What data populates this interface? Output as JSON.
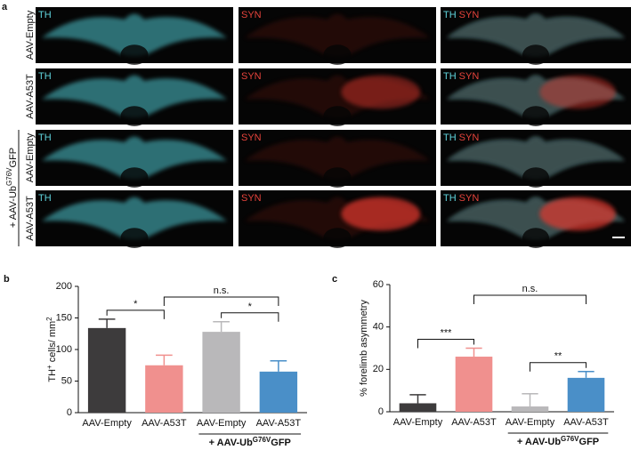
{
  "panel_labels": [
    "a",
    "b",
    "c"
  ],
  "panel_a": {
    "rows": [
      "AAV-Empty",
      "AAV-A53T",
      "AAV-Empty",
      "AAV-A53T"
    ],
    "channels": [
      [
        "TH"
      ],
      [
        "SYN"
      ],
      [
        "TH",
        "SYN"
      ]
    ],
    "group_label_parts": [
      "+ AAV-Ub",
      "G76V",
      "GFP"
    ]
  },
  "chart_data": [
    {
      "type": "bar",
      "ylabel_parts": [
        "TH",
        "+",
        " cells/ mm",
        "2"
      ],
      "categories": [
        "AAV-Empty",
        "AAV-A53T",
        "AAV-Empty",
        "AAV-A53T"
      ],
      "values": [
        134,
        75,
        128,
        65
      ],
      "errors": [
        14,
        16,
        16,
        17
      ],
      "colors": [
        "#3d3b3c",
        "#f0908e",
        "#b9b8ba",
        "#4a8fc8"
      ],
      "ylim": [
        0,
        200
      ],
      "yticks": [
        0,
        50,
        100,
        150,
        200
      ],
      "group_label_parts": [
        "+ AAV-Ub",
        "G76V",
        "GFP"
      ],
      "comparisons": [
        {
          "from": 0,
          "to": 1,
          "label": "*"
        },
        {
          "from": 1,
          "to": 3,
          "label": "n.s."
        },
        {
          "from": 2,
          "to": 3,
          "label": "*"
        }
      ]
    },
    {
      "type": "bar",
      "ylabel_parts": [
        "% forelimb asymmetry"
      ],
      "categories": [
        "AAV-Empty",
        "AAV-A53T",
        "AAV-Empty",
        "AAV-A53T"
      ],
      "values": [
        4,
        26,
        2.5,
        16
      ],
      "errors": [
        4,
        4,
        6,
        3
      ],
      "colors": [
        "#3d3b3c",
        "#f0908e",
        "#b9b8ba",
        "#4a8fc8"
      ],
      "ylim": [
        0,
        60
      ],
      "yticks": [
        0,
        20,
        40,
        60
      ],
      "group_label_parts": [
        "+ AAV-Ub",
        "G76V",
        "GFP"
      ],
      "comparisons": [
        {
          "from": 0,
          "to": 1,
          "label": "***"
        },
        {
          "from": 1,
          "to": 3,
          "label": "n.s."
        },
        {
          "from": 2,
          "to": 3,
          "label": "**"
        }
      ]
    }
  ]
}
